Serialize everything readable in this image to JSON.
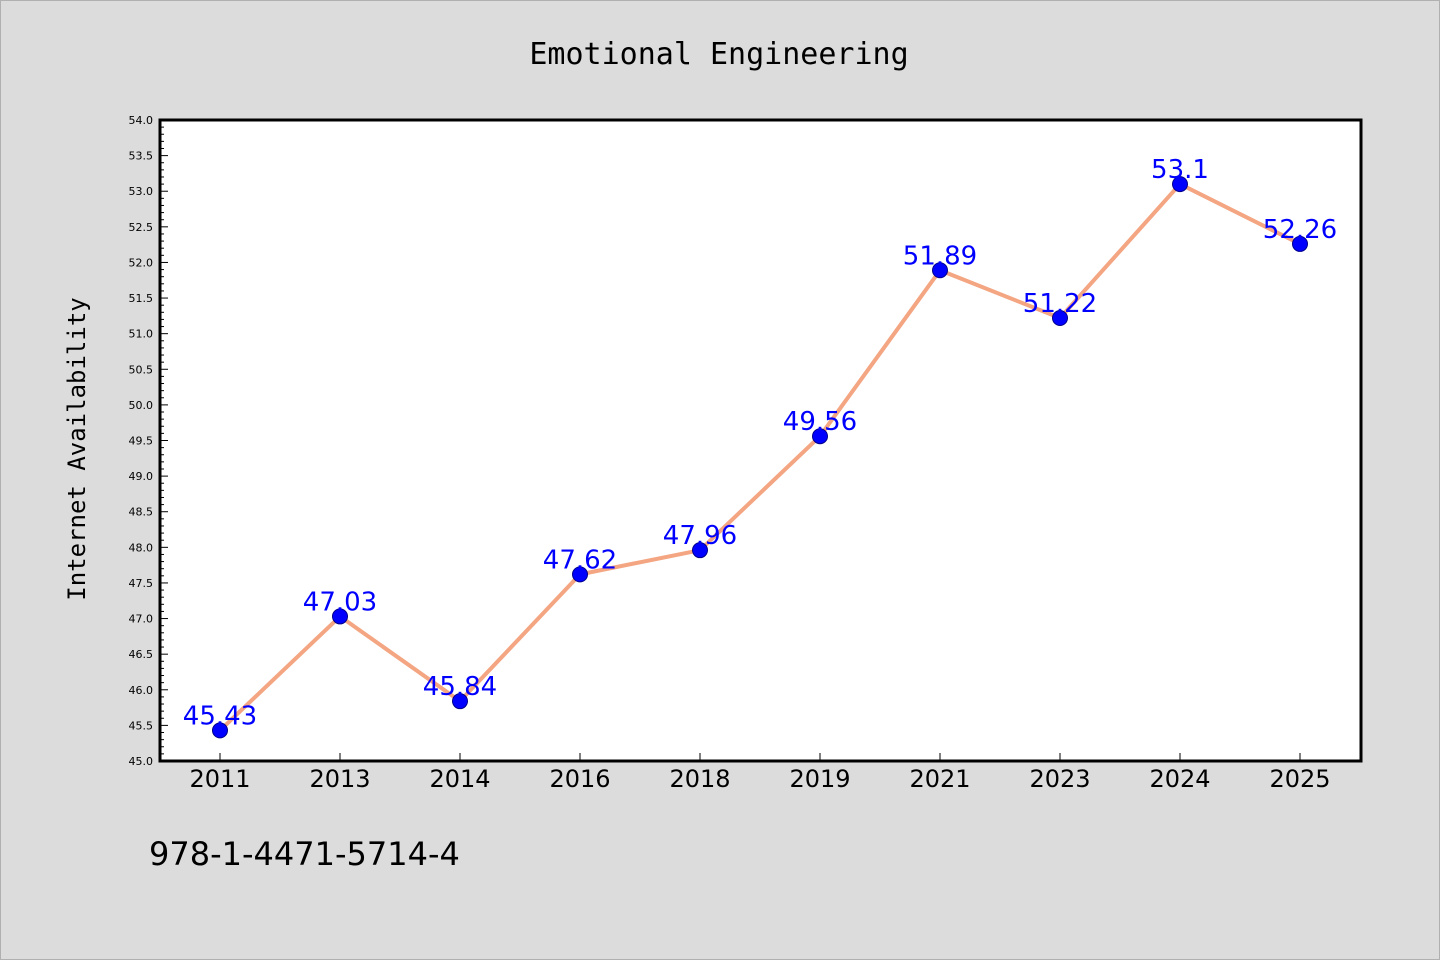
{
  "chart_data": {
    "type": "line",
    "title": "Emotional Engineering",
    "xlabel": "",
    "ylabel": "Internet Availability",
    "categories": [
      "2011",
      "2013",
      "2014",
      "2016",
      "2018",
      "2019",
      "2021",
      "2023",
      "2024",
      "2025"
    ],
    "series": [
      {
        "values": [
          45.43,
          47.03,
          45.84,
          47.62,
          47.96,
          49.56,
          51.89,
          51.22,
          53.1,
          52.26
        ],
        "labels": [
          "45.43",
          "47.03",
          "45.84",
          "47.62",
          "47.96",
          "49.56",
          "51.89",
          "51.22",
          "53.1",
          "52.26"
        ]
      }
    ],
    "ylim": [
      45.0,
      54.0
    ],
    "y_ticks": [
      "45.0",
      "45.5",
      "46.0",
      "46.5",
      "47.0",
      "47.5",
      "48.0",
      "48.5",
      "49.0",
      "49.5",
      "50.0",
      "50.5",
      "51.0",
      "51.5",
      "52.0",
      "52.5",
      "53.0",
      "53.5",
      "54.0"
    ],
    "grid": false,
    "legend": "none",
    "line_color": "#f4a582",
    "marker_color": "#0000ff",
    "label_color": "#0000ff"
  },
  "footer": {
    "code": "978-1-4471-5714-4"
  }
}
